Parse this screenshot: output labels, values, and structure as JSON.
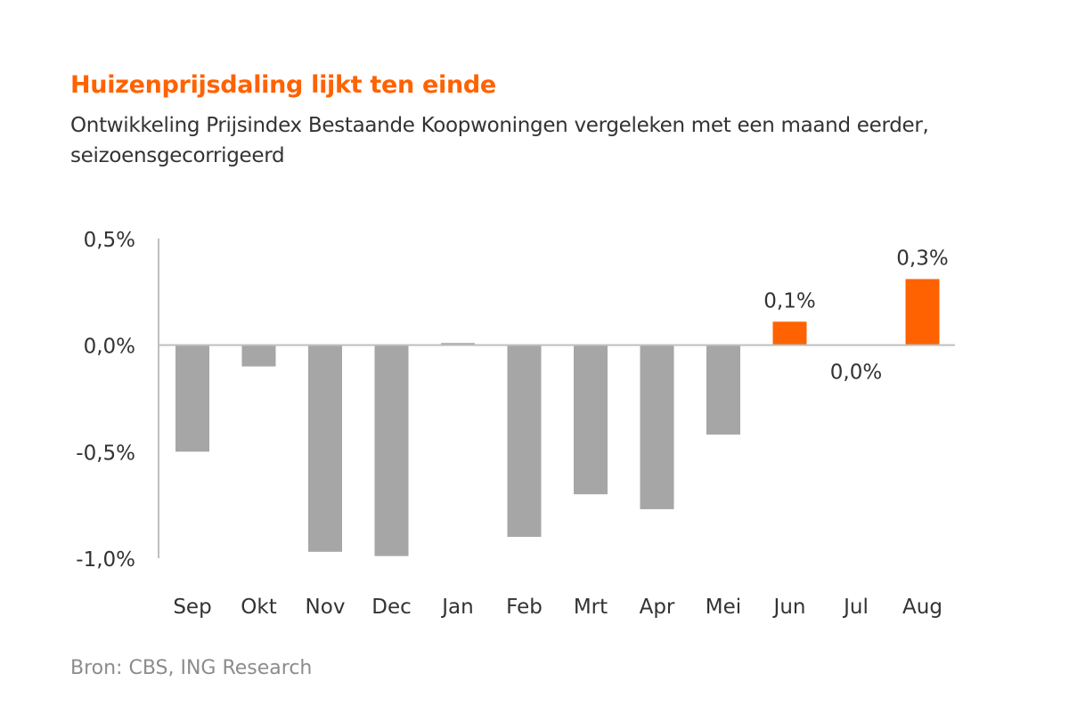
{
  "title": "Huizenprijsdaling lijkt ten einde",
  "subtitle": "Ontwikkeling Prijsindex Bestaande Koopwoningen vergeleken met een maand eerder, seizoensgecorrigeerd",
  "source": "Bron: CBS, ING Research",
  "colors": {
    "accent": "#ff6200",
    "bar_grey": "#a6a6a6",
    "axis": "#bfbfbf",
    "text": "#333333"
  },
  "chart_data": {
    "type": "bar",
    "categories": [
      "Sep",
      "Okt",
      "Nov",
      "Dec",
      "Jan",
      "Feb",
      "Mrt",
      "Apr",
      "Mei",
      "Jun",
      "Jul",
      "Aug"
    ],
    "values": [
      -0.5,
      -0.1,
      -0.97,
      -0.99,
      0.01,
      -0.9,
      -0.7,
      -0.77,
      -0.42,
      0.11,
      0.0,
      0.31
    ],
    "highlight": [
      false,
      false,
      false,
      false,
      false,
      false,
      false,
      false,
      false,
      true,
      true,
      true
    ],
    "data_labels": [
      "",
      "",
      "",
      "",
      "",
      "",
      "",
      "",
      "",
      "0,1%",
      "0,0%",
      "0,3%"
    ],
    "yticks": [
      0.5,
      0.0,
      -0.5,
      -1.0
    ],
    "ytick_labels": [
      "0,5%",
      "0,0%",
      "-0,5%",
      "-1,0%"
    ],
    "ylim": [
      -1.0,
      0.5
    ],
    "grid": false,
    "xlabel": "",
    "ylabel": ""
  }
}
